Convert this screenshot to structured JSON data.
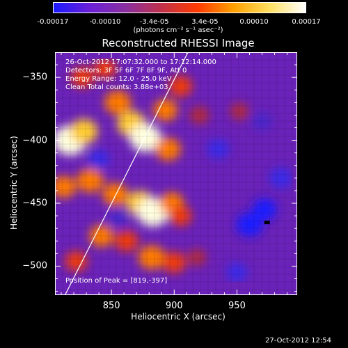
{
  "colorbar": {
    "tick_labels": [
      "-0.00017",
      "-0.00010",
      "-3.4e-05",
      "3.4e-05",
      "0.00010",
      "0.00017"
    ],
    "tick_values": [
      -0.00017,
      -0.0001,
      -3.4e-05,
      3.4e-05,
      0.0001,
      0.00017
    ],
    "range": [
      -0.00017,
      0.00017
    ],
    "units": "(photons cm⁻² s⁻¹ asec⁻²)",
    "colors": [
      "#1a1aff",
      "#6a1fd6",
      "#8a2fa0",
      "#c0304a",
      "#ff3a00",
      "#ffa000",
      "#ffe060",
      "#ffffff"
    ]
  },
  "chart_data": {
    "type": "heatmap",
    "title": "Reconstructed RHESSI Image",
    "xlabel": "Heliocentric X (arcsec)",
    "ylabel": "Heliocentric Y (arcsec)",
    "xlim": [
      805,
      998
    ],
    "ylim": [
      -523,
      -330
    ],
    "xticks": [
      850,
      900,
      950
    ],
    "yticks": [
      -350,
      -400,
      -450,
      -500
    ],
    "info_lines": [
      "26-Oct-2012 17:07:32.000 to 17:12:14.000",
      "Detectors: 3F 5F 6F 7F 8F 9F, Att 0",
      "Energy Range: 12.0 - 25.0 keV",
      "Clean    Total counts: 3.88e+03"
    ],
    "peak_label": "Position of Peak = [819,-397]",
    "peak": [
      819,
      -397
    ],
    "limb_line": [
      [
        813,
        -523
      ],
      [
        911,
        -330
      ]
    ],
    "hot_spots": [
      {
        "x": 817,
        "y": -400,
        "level": 1.0
      },
      {
        "x": 828,
        "y": -393,
        "level": 0.75
      },
      {
        "x": 855,
        "y": -370,
        "level": 0.7
      },
      {
        "x": 866,
        "y": -387,
        "level": 0.8
      },
      {
        "x": 877,
        "y": -398,
        "level": 0.92
      },
      {
        "x": 893,
        "y": -376,
        "level": 0.6
      },
      {
        "x": 895,
        "y": -407,
        "level": 0.65
      },
      {
        "x": 827,
        "y": -350,
        "level": 0.55
      },
      {
        "x": 845,
        "y": -343,
        "level": 0.5
      },
      {
        "x": 905,
        "y": -357,
        "level": 0.55
      },
      {
        "x": 812,
        "y": -437,
        "level": 0.6
      },
      {
        "x": 833,
        "y": -432,
        "level": 0.7
      },
      {
        "x": 853,
        "y": -443,
        "level": 0.65
      },
      {
        "x": 873,
        "y": -450,
        "level": 0.75
      },
      {
        "x": 883,
        "y": -457,
        "level": 0.95
      },
      {
        "x": 898,
        "y": -450,
        "level": 0.6
      },
      {
        "x": 905,
        "y": -460,
        "level": 0.5
      },
      {
        "x": 842,
        "y": -476,
        "level": 0.6
      },
      {
        "x": 862,
        "y": -480,
        "level": 0.55
      },
      {
        "x": 882,
        "y": -493,
        "level": 0.7
      },
      {
        "x": 900,
        "y": -497,
        "level": 0.55
      },
      {
        "x": 822,
        "y": -496,
        "level": 0.5
      },
      {
        "x": 920,
        "y": -380,
        "level": 0.4
      },
      {
        "x": 952,
        "y": -377,
        "level": 0.35
      },
      {
        "x": 918,
        "y": -493,
        "level": 0.35
      },
      {
        "x": 960,
        "y": -467,
        "level": -0.7
      },
      {
        "x": 972,
        "y": -455,
        "level": -0.6
      },
      {
        "x": 935,
        "y": -407,
        "level": -0.5
      },
      {
        "x": 985,
        "y": -430,
        "level": -0.55
      },
      {
        "x": 950,
        "y": -505,
        "level": -0.45
      },
      {
        "x": 970,
        "y": -385,
        "level": -0.4
      },
      {
        "x": 840,
        "y": -415,
        "level": -0.45
      },
      {
        "x": 855,
        "y": -462,
        "level": -0.4
      }
    ]
  },
  "timestamp": "27-Oct-2012 12:54"
}
